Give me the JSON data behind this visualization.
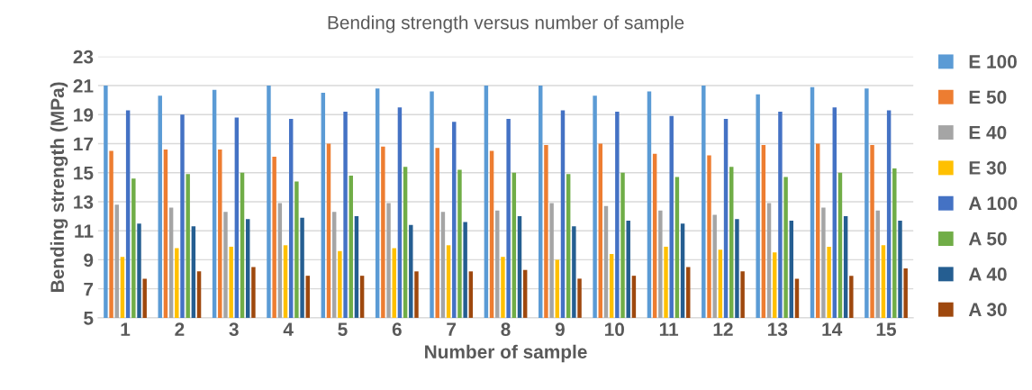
{
  "chart_data": {
    "type": "bar",
    "title": "Bending strength versus number of sample",
    "xlabel": "Number of sample",
    "ylabel": "Bending strength (MPa)",
    "categories": [
      "1",
      "2",
      "3",
      "4",
      "5",
      "6",
      "7",
      "8",
      "9",
      "10",
      "11",
      "12",
      "13",
      "14",
      "15"
    ],
    "series": [
      {
        "name": "E 100",
        "color": "#5b9bd5",
        "values": [
          21.0,
          20.3,
          20.7,
          21.0,
          20.5,
          20.8,
          20.6,
          21.0,
          21.0,
          20.3,
          20.6,
          21.0,
          20.4,
          20.9,
          20.8
        ]
      },
      {
        "name": "E 50",
        "color": "#ed7d31",
        "values": [
          16.5,
          16.6,
          16.6,
          16.1,
          17.0,
          16.8,
          16.7,
          16.5,
          16.9,
          17.0,
          16.3,
          16.2,
          16.9,
          17.0,
          16.9
        ]
      },
      {
        "name": "E 40",
        "color": "#a5a5a5",
        "values": [
          12.8,
          12.6,
          12.3,
          12.9,
          12.3,
          12.9,
          12.3,
          12.4,
          12.9,
          12.7,
          12.4,
          12.1,
          12.9,
          12.6,
          12.4
        ]
      },
      {
        "name": "E 30",
        "color": "#ffc000",
        "values": [
          9.2,
          9.8,
          9.9,
          10.0,
          9.6,
          9.8,
          10.0,
          9.2,
          9.0,
          9.4,
          9.9,
          9.7,
          9.5,
          9.9,
          10.0
        ]
      },
      {
        "name": "A 100",
        "color": "#4472c4",
        "values": [
          19.3,
          19.0,
          18.8,
          18.7,
          19.2,
          19.5,
          18.5,
          18.7,
          19.3,
          19.2,
          18.9,
          18.7,
          19.2,
          19.5,
          19.3
        ]
      },
      {
        "name": "A 50",
        "color": "#70ad47",
        "values": [
          14.6,
          14.9,
          15.0,
          14.4,
          14.8,
          15.4,
          15.2,
          15.0,
          14.9,
          15.0,
          14.7,
          15.4,
          14.7,
          15.0,
          15.3
        ]
      },
      {
        "name": "A 40",
        "color": "#255e91",
        "values": [
          11.5,
          11.3,
          11.8,
          11.9,
          12.0,
          11.4,
          11.6,
          12.0,
          11.3,
          11.7,
          11.5,
          11.8,
          11.7,
          12.0,
          11.7
        ]
      },
      {
        "name": "A 30",
        "color": "#9e480e",
        "values": [
          7.7,
          8.2,
          8.5,
          7.9,
          7.9,
          8.2,
          8.2,
          8.3,
          7.7,
          7.9,
          8.5,
          8.2,
          7.7,
          7.9,
          8.4
        ]
      }
    ],
    "ylim": [
      5,
      23
    ],
    "yticks": [
      5,
      7,
      9,
      11,
      13,
      15,
      17,
      19,
      21,
      23
    ],
    "grid": "y",
    "legend": "right"
  }
}
